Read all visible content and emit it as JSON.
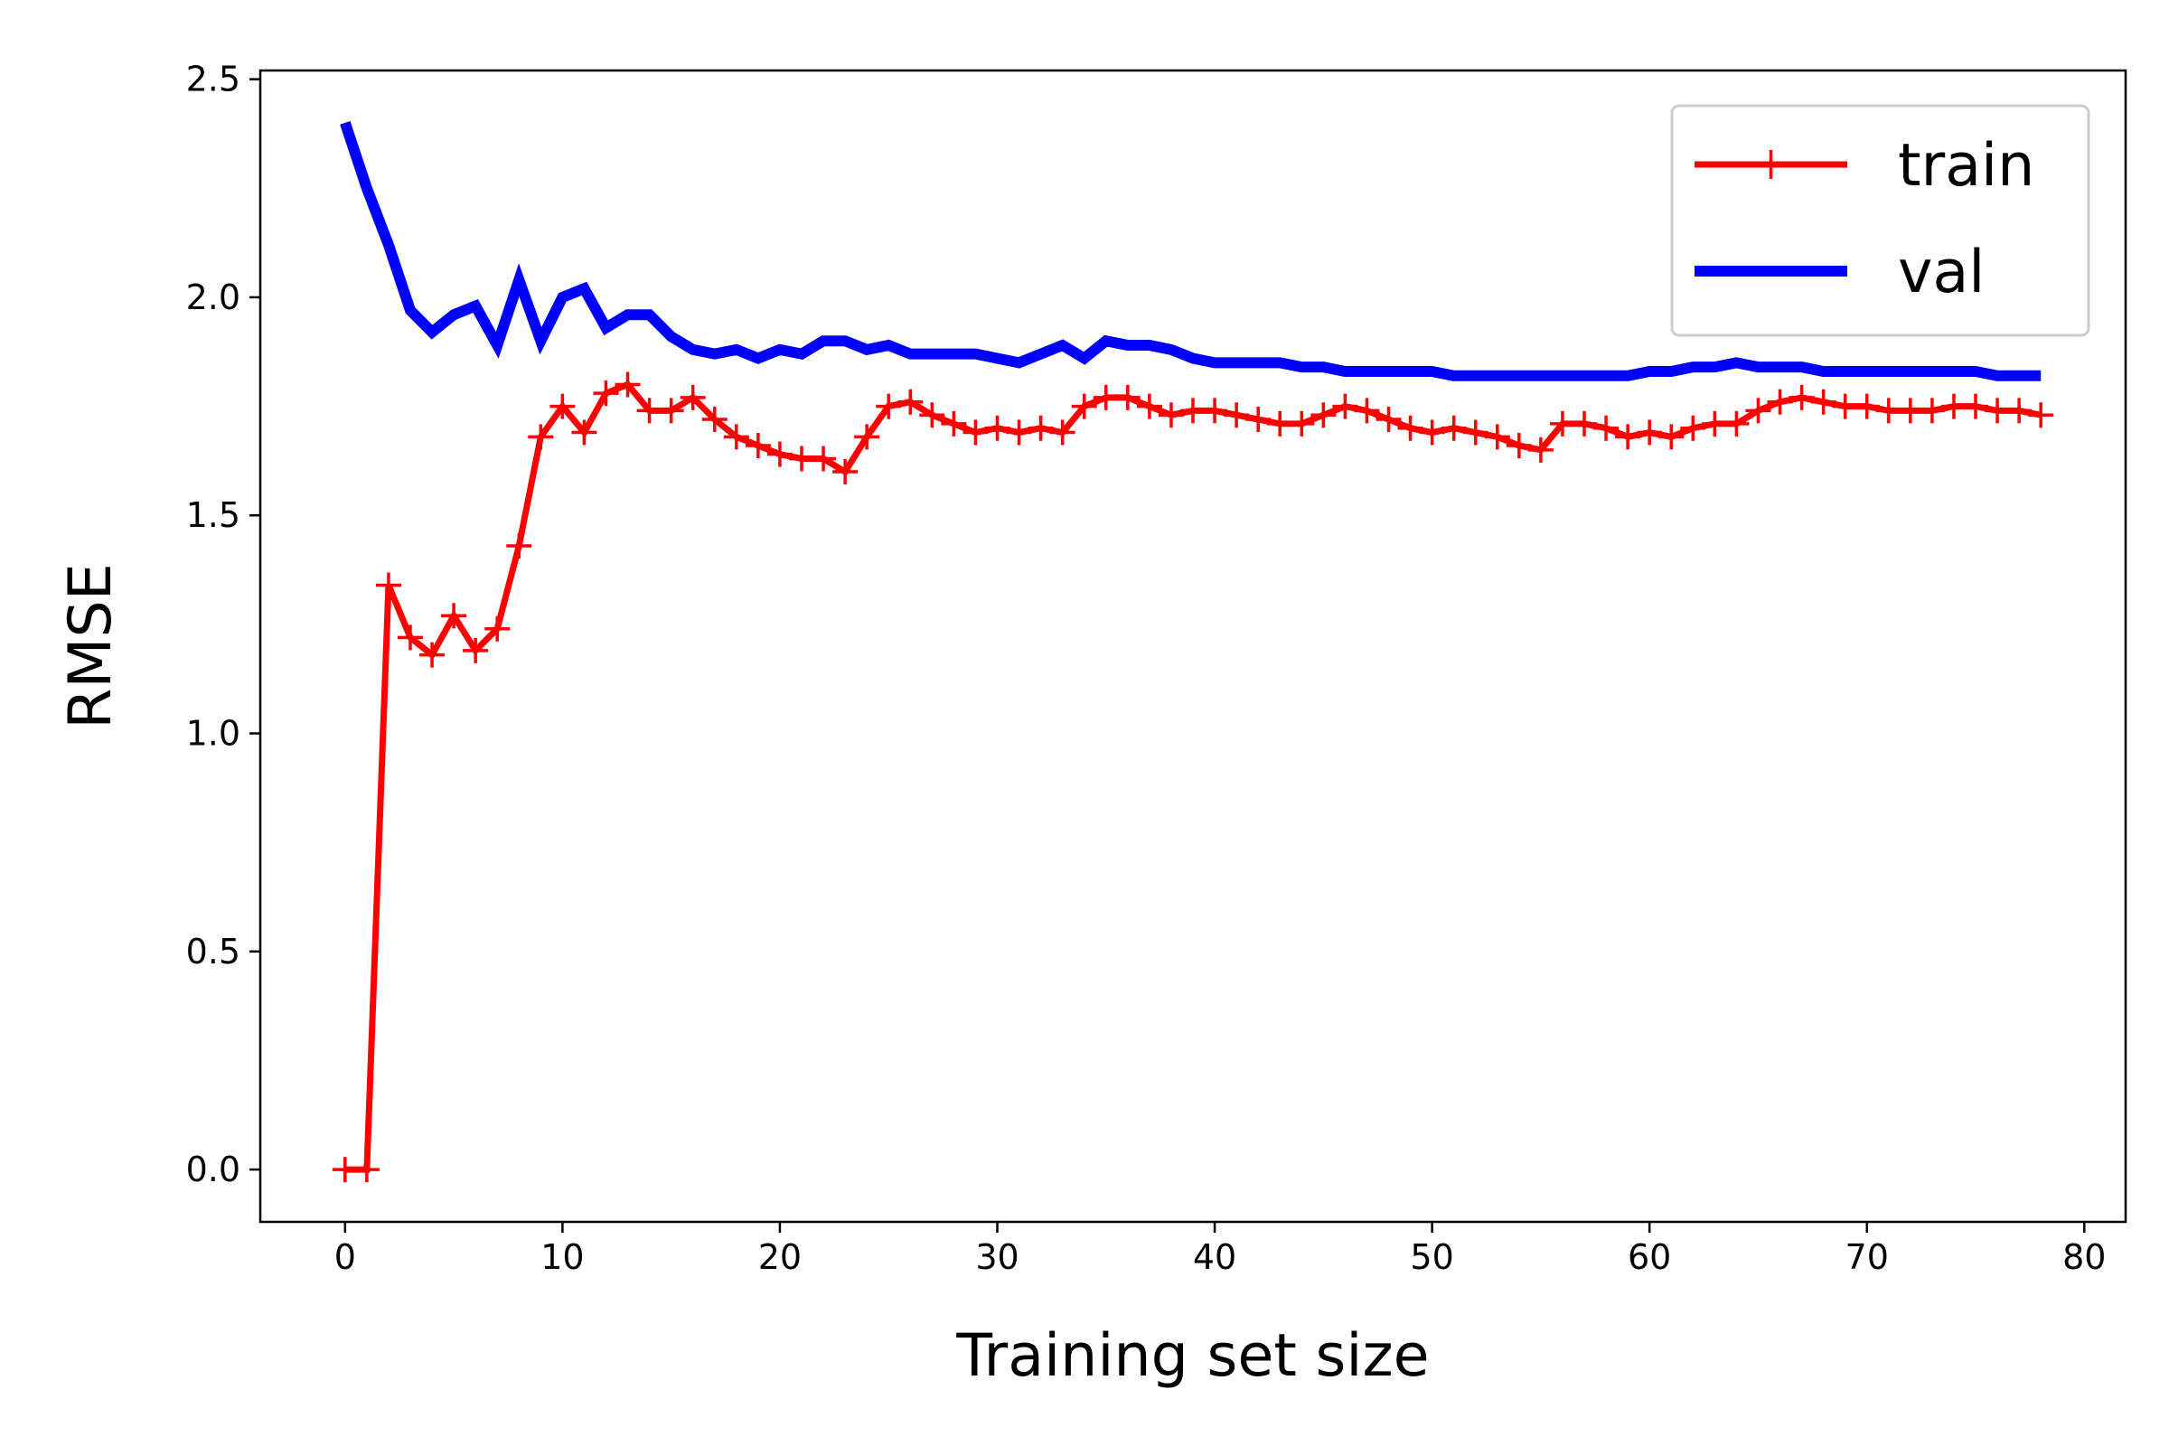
{
  "chart_data": {
    "type": "line",
    "xlabel": "Training set size",
    "ylabel": "RMSE",
    "xlim": [
      -3.9,
      81.9
    ],
    "ylim": [
      -0.12,
      2.52
    ],
    "xticks": [
      0,
      10,
      20,
      30,
      40,
      50,
      60,
      70,
      80
    ],
    "xtick_labels": [
      "0",
      "10",
      "20",
      "30",
      "40",
      "50",
      "60",
      "70",
      "80"
    ],
    "yticks": [
      0.0,
      0.5,
      1.0,
      1.5,
      2.0,
      2.5
    ],
    "ytick_labels": [
      "0.0",
      "0.5",
      "1.0",
      "1.5",
      "2.0",
      "2.5"
    ],
    "grid": false,
    "legend": {
      "placement": "top-right",
      "entries": [
        "train",
        "val"
      ]
    },
    "x": [
      0,
      1,
      2,
      3,
      4,
      5,
      6,
      7,
      8,
      9,
      10,
      11,
      12,
      13,
      14,
      15,
      16,
      17,
      18,
      19,
      20,
      21,
      22,
      23,
      24,
      25,
      26,
      27,
      28,
      29,
      30,
      31,
      32,
      33,
      34,
      35,
      36,
      37,
      38,
      39,
      40,
      41,
      42,
      43,
      44,
      45,
      46,
      47,
      48,
      49,
      50,
      51,
      52,
      53,
      54,
      55,
      56,
      57,
      58,
      59,
      60,
      61,
      62,
      63,
      64,
      65,
      66,
      67,
      68,
      69,
      70,
      71,
      72,
      73,
      74,
      75,
      76,
      77,
      78
    ],
    "series": [
      {
        "name": "train",
        "color": "#ff0000",
        "marker": "+",
        "values": [
          0.0,
          0.0,
          1.34,
          1.22,
          1.18,
          1.27,
          1.19,
          1.24,
          1.43,
          1.68,
          1.75,
          1.69,
          1.78,
          1.8,
          1.74,
          1.74,
          1.77,
          1.72,
          1.68,
          1.66,
          1.64,
          1.63,
          1.63,
          1.6,
          1.68,
          1.75,
          1.76,
          1.73,
          1.71,
          1.69,
          1.7,
          1.69,
          1.7,
          1.69,
          1.75,
          1.77,
          1.77,
          1.75,
          1.73,
          1.74,
          1.74,
          1.73,
          1.72,
          1.71,
          1.71,
          1.73,
          1.75,
          1.74,
          1.72,
          1.7,
          1.69,
          1.7,
          1.69,
          1.68,
          1.66,
          1.65,
          1.71,
          1.71,
          1.7,
          1.68,
          1.69,
          1.68,
          1.7,
          1.71,
          1.71,
          1.74,
          1.76,
          1.77,
          1.76,
          1.75,
          1.75,
          1.74,
          1.74,
          1.74,
          1.75,
          1.75,
          1.74,
          1.74,
          1.73
        ]
      },
      {
        "name": "val",
        "color": "#0000ff",
        "marker": "",
        "values": [
          2.4,
          2.25,
          2.12,
          1.97,
          1.92,
          1.96,
          1.98,
          1.89,
          2.04,
          1.9,
          2.0,
          2.02,
          1.93,
          1.96,
          1.96,
          1.91,
          1.88,
          1.87,
          1.88,
          1.86,
          1.88,
          1.87,
          1.9,
          1.9,
          1.88,
          1.89,
          1.87,
          1.87,
          1.87,
          1.87,
          1.86,
          1.85,
          1.87,
          1.89,
          1.86,
          1.9,
          1.89,
          1.89,
          1.88,
          1.86,
          1.85,
          1.85,
          1.85,
          1.85,
          1.84,
          1.84,
          1.83,
          1.83,
          1.83,
          1.83,
          1.83,
          1.82,
          1.82,
          1.82,
          1.82,
          1.82,
          1.82,
          1.82,
          1.82,
          1.82,
          1.83,
          1.83,
          1.84,
          1.84,
          1.85,
          1.84,
          1.84,
          1.84,
          1.83,
          1.83,
          1.83,
          1.83,
          1.83,
          1.83,
          1.83,
          1.83,
          1.82,
          1.82,
          1.82
        ]
      }
    ]
  }
}
